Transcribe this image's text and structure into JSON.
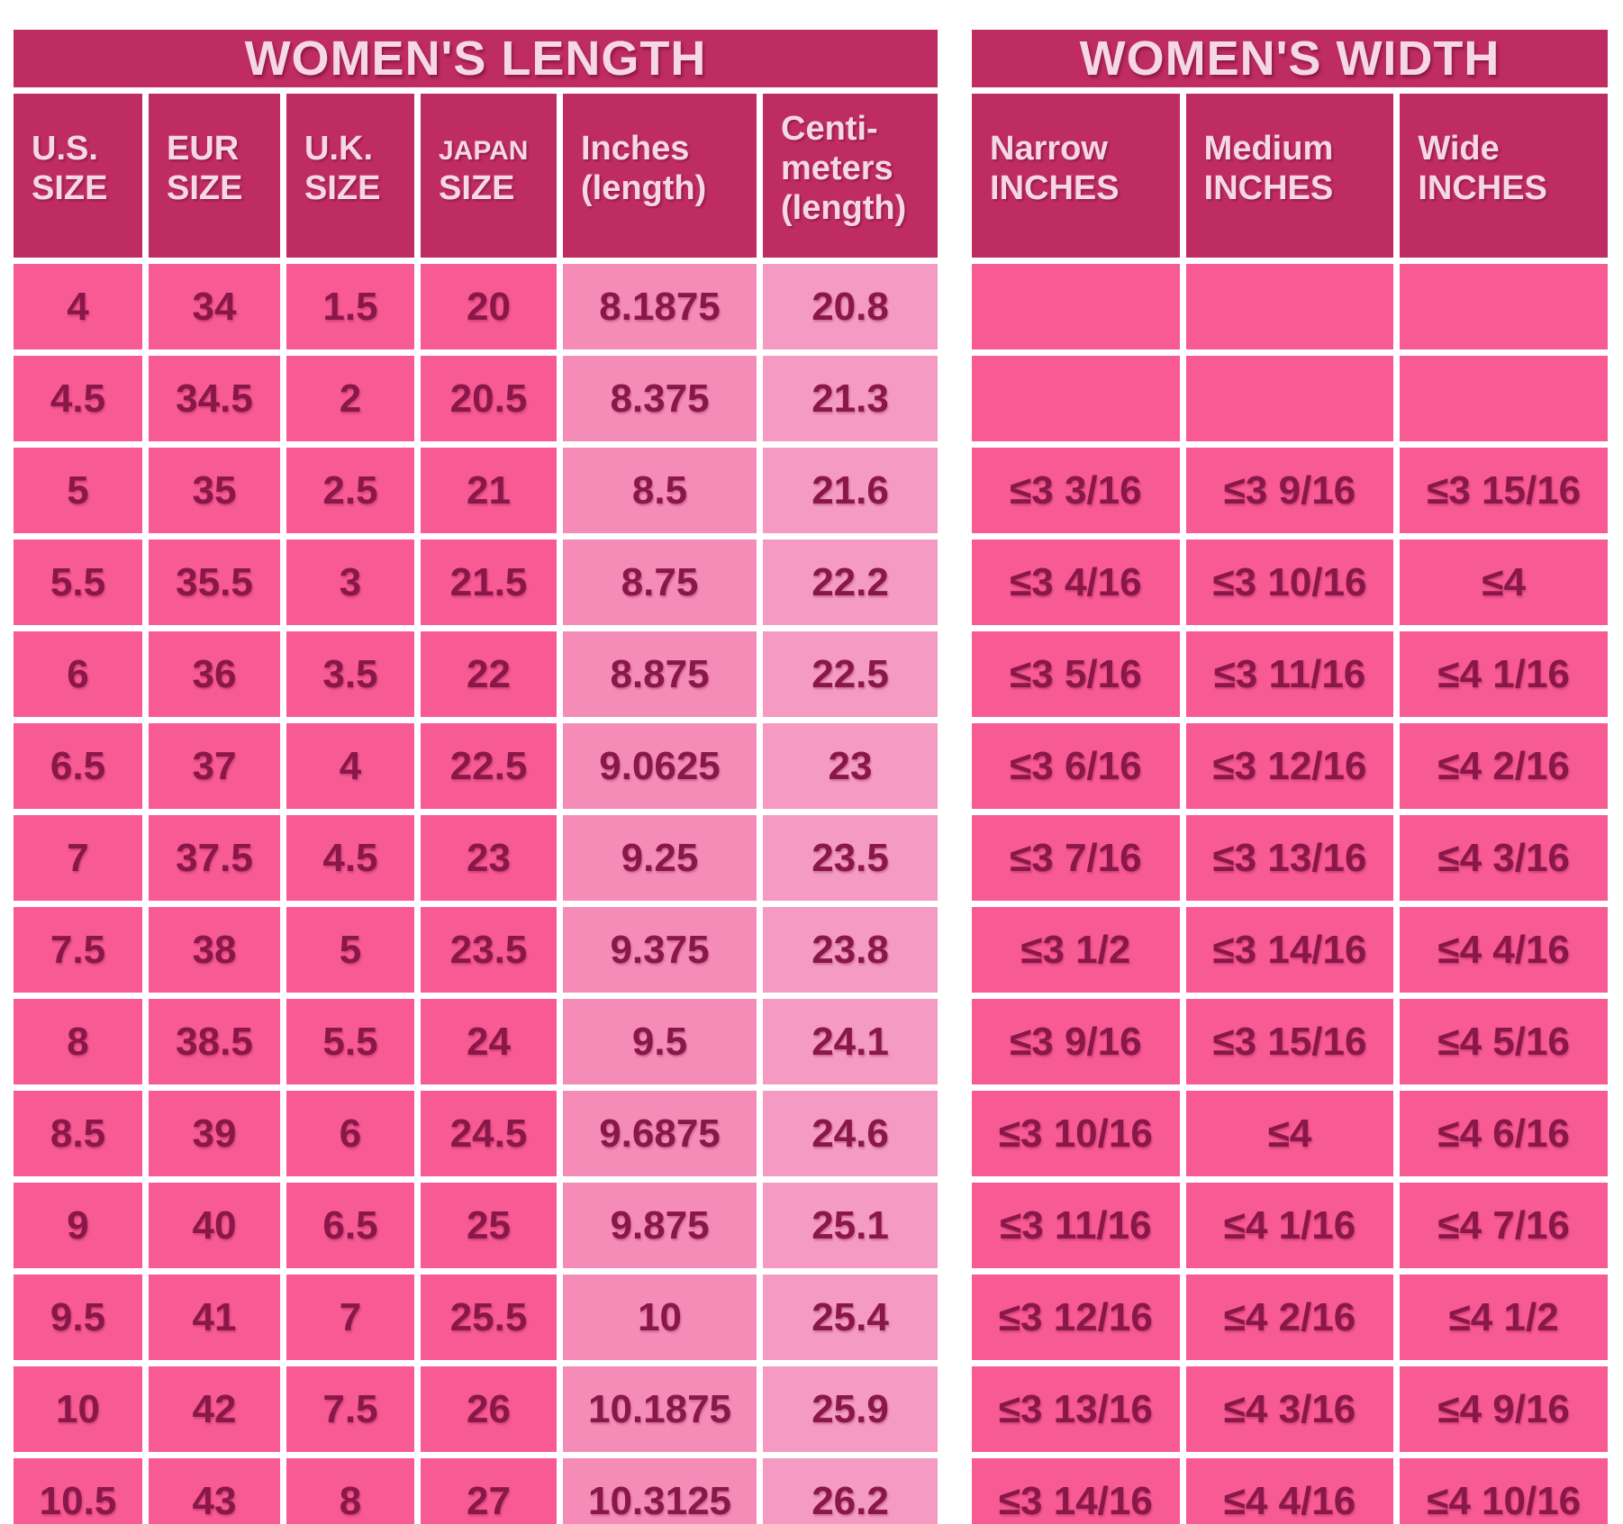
{
  "colors": {
    "page_bg": "#ffffff",
    "grid": "#ffffff",
    "header_bg": "#bf2c62",
    "header_text": "#f6d7e4",
    "cell_dark": "#f85a93",
    "cell_light_inches": "#f58cb8",
    "cell_light_cm": "#f59ac2",
    "text_dark": "#8a1749"
  },
  "chart_data": [
    {
      "type": "table",
      "title": "WOMEN'S LENGTH",
      "columns": [
        {
          "id": "us-size",
          "label": "U.S.\nSIZE"
        },
        {
          "id": "eur-size",
          "label": "EUR\nSIZE"
        },
        {
          "id": "uk-size",
          "label": "U.K.\nSIZE"
        },
        {
          "id": "japan-size",
          "label": "JAPAN\nSIZE",
          "small_first_line": true
        },
        {
          "id": "inches-length",
          "label": "Inches\n(length)"
        },
        {
          "id": "centimeters-length",
          "label": "Centi-\nmeters\n(length)"
        }
      ],
      "rows": [
        [
          "4",
          "34",
          "1.5",
          "20",
          "8.1875",
          "20.8"
        ],
        [
          "4.5",
          "34.5",
          "2",
          "20.5",
          "8.375",
          "21.3"
        ],
        [
          "5",
          "35",
          "2.5",
          "21",
          "8.5",
          "21.6"
        ],
        [
          "5.5",
          "35.5",
          "3",
          "21.5",
          "8.75",
          "22.2"
        ],
        [
          "6",
          "36",
          "3.5",
          "22",
          "8.875",
          "22.5"
        ],
        [
          "6.5",
          "37",
          "4",
          "22.5",
          "9.0625",
          "23"
        ],
        [
          "7",
          "37.5",
          "4.5",
          "23",
          "9.25",
          "23.5"
        ],
        [
          "7.5",
          "38",
          "5",
          "23.5",
          "9.375",
          "23.8"
        ],
        [
          "8",
          "38.5",
          "5.5",
          "24",
          "9.5",
          "24.1"
        ],
        [
          "8.5",
          "39",
          "6",
          "24.5",
          "9.6875",
          "24.6"
        ],
        [
          "9",
          "40",
          "6.5",
          "25",
          "9.875",
          "25.1"
        ],
        [
          "9.5",
          "41",
          "7",
          "25.5",
          "10",
          "25.4"
        ],
        [
          "10",
          "42",
          "7.5",
          "26",
          "10.1875",
          "25.9"
        ],
        [
          "10.5",
          "43",
          "8",
          "27",
          "10.3125",
          "26.2"
        ]
      ]
    },
    {
      "type": "table",
      "title": "WOMEN'S WIDTH",
      "columns": [
        {
          "id": "narrow-inches",
          "label": "Narrow\nINCHES"
        },
        {
          "id": "medium-inches",
          "label": "Medium\nINCHES"
        },
        {
          "id": "wide-inches",
          "label": "Wide\nINCHES"
        }
      ],
      "rows": [
        [
          "",
          "",
          ""
        ],
        [
          "",
          "",
          ""
        ],
        [
          "≤3 3/16",
          "≤3 9/16",
          "≤3 15/16"
        ],
        [
          "≤3 4/16",
          "≤3 10/16",
          "≤4"
        ],
        [
          "≤3 5/16",
          "≤3 11/16",
          "≤4 1/16"
        ],
        [
          "≤3 6/16",
          "≤3 12/16",
          "≤4 2/16"
        ],
        [
          "≤3 7/16",
          "≤3 13/16",
          "≤4 3/16"
        ],
        [
          "≤3 1/2",
          "≤3 14/16",
          "≤4 4/16"
        ],
        [
          "≤3 9/16",
          "≤3 15/16",
          "≤4 5/16"
        ],
        [
          "≤3 10/16",
          "≤4",
          "≤4 6/16"
        ],
        [
          "≤3 11/16",
          "≤4 1/16",
          "≤4 7/16"
        ],
        [
          "≤3 12/16",
          "≤4 2/16",
          "≤4 1/2"
        ],
        [
          "≤3 13/16",
          "≤4 3/16",
          "≤4 9/16"
        ],
        [
          "≤3 14/16",
          "≤4 4/16",
          "≤4 10/16"
        ]
      ]
    }
  ]
}
